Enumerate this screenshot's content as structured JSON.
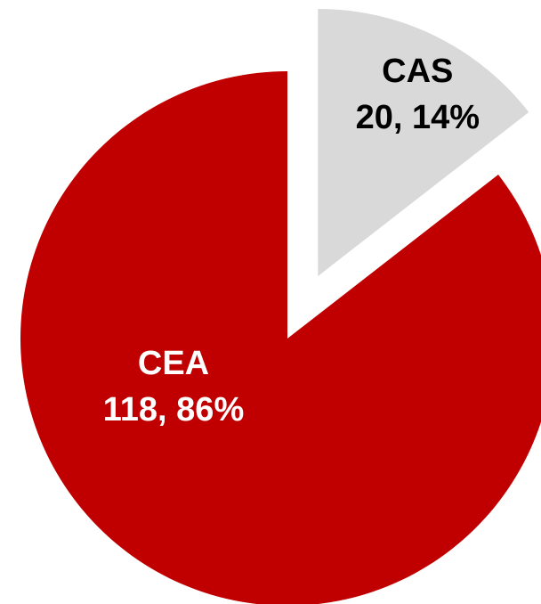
{
  "chart_data": {
    "type": "pie",
    "categories": [
      "CAS",
      "CEA"
    ],
    "values": [
      20,
      118
    ],
    "value_labels": [
      "20, 14%",
      "118, 86%"
    ],
    "colors": [
      "#d9d9d9",
      "#c00000"
    ]
  }
}
